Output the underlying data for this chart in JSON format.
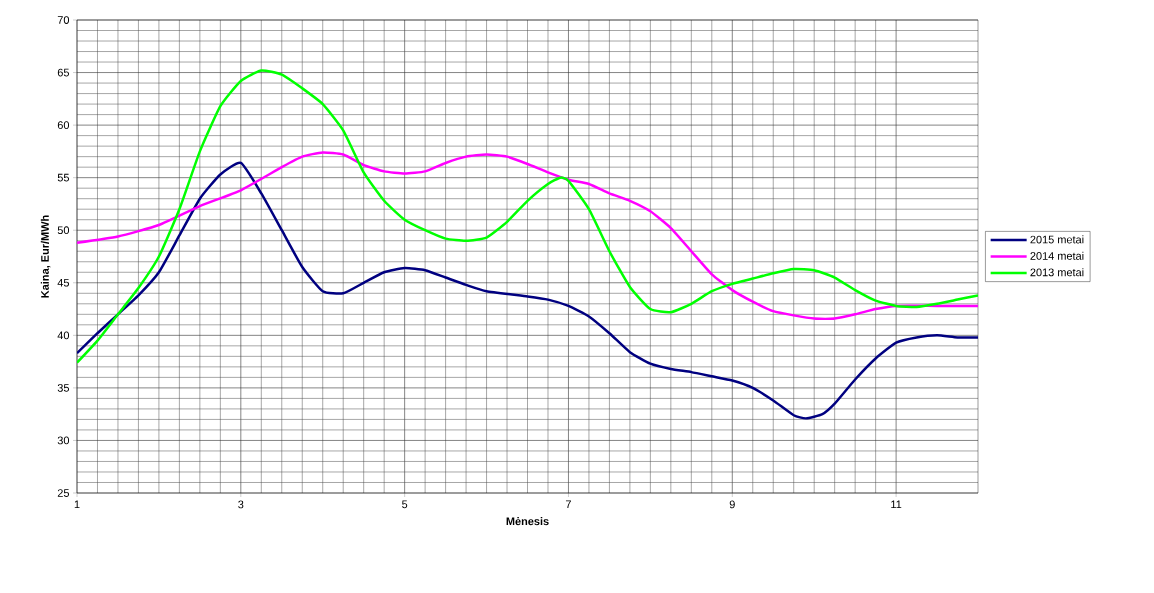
{
  "chart_data": {
    "type": "line",
    "xlabel": "Mėnesis",
    "ylabel": "Kaina, Eur/MWh",
    "xlim": [
      1,
      12
    ],
    "xticks": [
      1,
      3,
      5,
      7,
      9,
      11
    ],
    "ylim": [
      25,
      70
    ],
    "yticks": [
      25,
      30,
      35,
      40,
      45,
      50,
      55,
      60,
      65,
      70
    ],
    "grid": true,
    "legend": "right",
    "marker": "none",
    "line_style": "solid",
    "series": [
      {
        "name": "2015 metai",
        "color": "#000080",
        "x": [
          1,
          1.25,
          1.5,
          1.75,
          2,
          2.25,
          2.5,
          2.75,
          3,
          3.25,
          3.5,
          3.75,
          4,
          4.25,
          4.5,
          4.75,
          5,
          5.25,
          5.5,
          5.75,
          6,
          6.5,
          6.75,
          7,
          7.25,
          7.5,
          7.75,
          8,
          8.25,
          8.5,
          8.75,
          9,
          9.25,
          9.5,
          9.75,
          9.9,
          10.1,
          10.25,
          10.5,
          10.75,
          11,
          11.25,
          11.5,
          11.75,
          12
        ],
        "values": [
          38.3,
          40.2,
          42,
          43.8,
          46,
          49.5,
          53,
          55.3,
          56.4,
          53.5,
          50,
          46.5,
          44.2,
          44,
          45,
          46,
          46.4,
          46.2,
          45.5,
          44.8,
          44.2,
          43.7,
          43.4,
          42.8,
          41.8,
          40.2,
          38.4,
          37.3,
          36.8,
          36.5,
          36.1,
          35.7,
          35,
          33.8,
          32.4,
          32.1,
          32.5,
          33.5,
          35.8,
          37.8,
          39.3,
          39.8,
          40,
          39.8,
          39.8
        ]
      },
      {
        "name": "2014 metai",
        "color": "#ff00ff",
        "x": [
          1,
          1.5,
          2,
          2.5,
          3,
          3.5,
          3.75,
          4,
          4.25,
          4.5,
          4.75,
          5,
          5.25,
          5.5,
          5.75,
          6,
          6.25,
          6.5,
          6.75,
          7,
          7.25,
          7.5,
          7.75,
          8,
          8.25,
          8.5,
          8.75,
          9,
          9.25,
          9.5,
          9.75,
          10,
          10.25,
          10.5,
          10.75,
          11,
          11.5,
          12
        ],
        "values": [
          48.8,
          49.4,
          50.5,
          52.3,
          53.8,
          56,
          57,
          57.4,
          57.2,
          56.2,
          55.6,
          55.4,
          55.6,
          56.4,
          57,
          57.2,
          57,
          56.3,
          55.5,
          54.8,
          54.4,
          53.5,
          52.8,
          51.8,
          50.2,
          48,
          45.8,
          44.3,
          43.2,
          42.3,
          41.9,
          41.6,
          41.6,
          42,
          42.5,
          42.8,
          42.8,
          42.8
        ]
      },
      {
        "name": "2013 metai",
        "color": "#00ff00",
        "x": [
          1,
          1.25,
          1.5,
          1.75,
          2,
          2.25,
          2.5,
          2.75,
          3,
          3.25,
          3.5,
          3.75,
          4,
          4.25,
          4.5,
          4.75,
          5,
          5.25,
          5.5,
          5.75,
          6,
          6.25,
          6.5,
          6.75,
          6.9,
          7,
          7.25,
          7.5,
          7.75,
          8,
          8.25,
          8.5,
          8.75,
          9,
          9.25,
          9.5,
          9.75,
          10,
          10.25,
          10.5,
          10.75,
          11,
          11.25,
          11.5,
          11.75,
          12
        ],
        "values": [
          37.4,
          39.5,
          42,
          44.5,
          47.5,
          52,
          57.5,
          61.8,
          64.2,
          65.2,
          64.8,
          63.5,
          62,
          59.5,
          55.5,
          52.8,
          51,
          50,
          49.2,
          49,
          49.3,
          50.8,
          52.8,
          54.4,
          55,
          54.7,
          52,
          48,
          44.6,
          42.5,
          42.2,
          43,
          44.2,
          44.9,
          45.4,
          45.9,
          46.3,
          46.2,
          45.5,
          44.3,
          43.3,
          42.8,
          42.7,
          43,
          43.4,
          43.8
        ]
      }
    ]
  }
}
